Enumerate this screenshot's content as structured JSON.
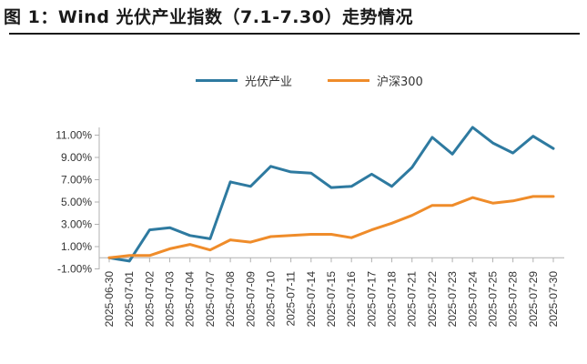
{
  "figure": {
    "title": "图 1：Wind 光伏产业指数（7.1-7.30）走势情况"
  },
  "colors": {
    "series_pv": "#2e7aa0",
    "series_hs300": "#ef8c2a",
    "axis": "#b0b0b0"
  },
  "chart_data": {
    "type": "line",
    "title": "",
    "xlabel": "",
    "ylabel": "",
    "ylim": [
      -1.0,
      12.0
    ],
    "yticks": [
      "11.00%",
      "9.00%",
      "7.00%",
      "5.00%",
      "3.00%",
      "1.00%",
      "-1.00%"
    ],
    "ytick_values": [
      11,
      9,
      7,
      5,
      3,
      1,
      -1
    ],
    "legend_position": "top-center",
    "categories": [
      "2025-06-30",
      "2025-07-01",
      "2025-07-02",
      "2025-07-03",
      "2025-07-04",
      "2025-07-07",
      "2025-07-08",
      "2025-07-09",
      "2025-07-10",
      "2025-07-11",
      "2025-07-14",
      "2025-07-15",
      "2025-07-16",
      "2025-07-17",
      "2025-07-18",
      "2025-07-21",
      "2025-07-22",
      "2025-07-23",
      "2025-07-24",
      "2025-07-25",
      "2025-07-28",
      "2025-07-29",
      "2025-07-30"
    ],
    "series": [
      {
        "name": "光伏产业",
        "color_key": "series_pv",
        "values": [
          0.0,
          -0.3,
          2.5,
          2.7,
          2.0,
          1.7,
          6.8,
          6.4,
          8.2,
          7.7,
          7.6,
          6.3,
          6.4,
          7.5,
          6.4,
          8.1,
          10.8,
          9.3,
          11.7,
          10.3,
          9.4,
          10.9,
          9.8
        ]
      },
      {
        "name": "沪深300",
        "color_key": "series_hs300",
        "values": [
          0.0,
          0.2,
          0.2,
          0.8,
          1.2,
          0.7,
          1.6,
          1.4,
          1.9,
          2.0,
          2.1,
          2.1,
          1.8,
          2.5,
          3.1,
          3.8,
          4.7,
          4.7,
          5.4,
          4.9,
          5.1,
          5.5,
          5.5
        ]
      }
    ]
  }
}
